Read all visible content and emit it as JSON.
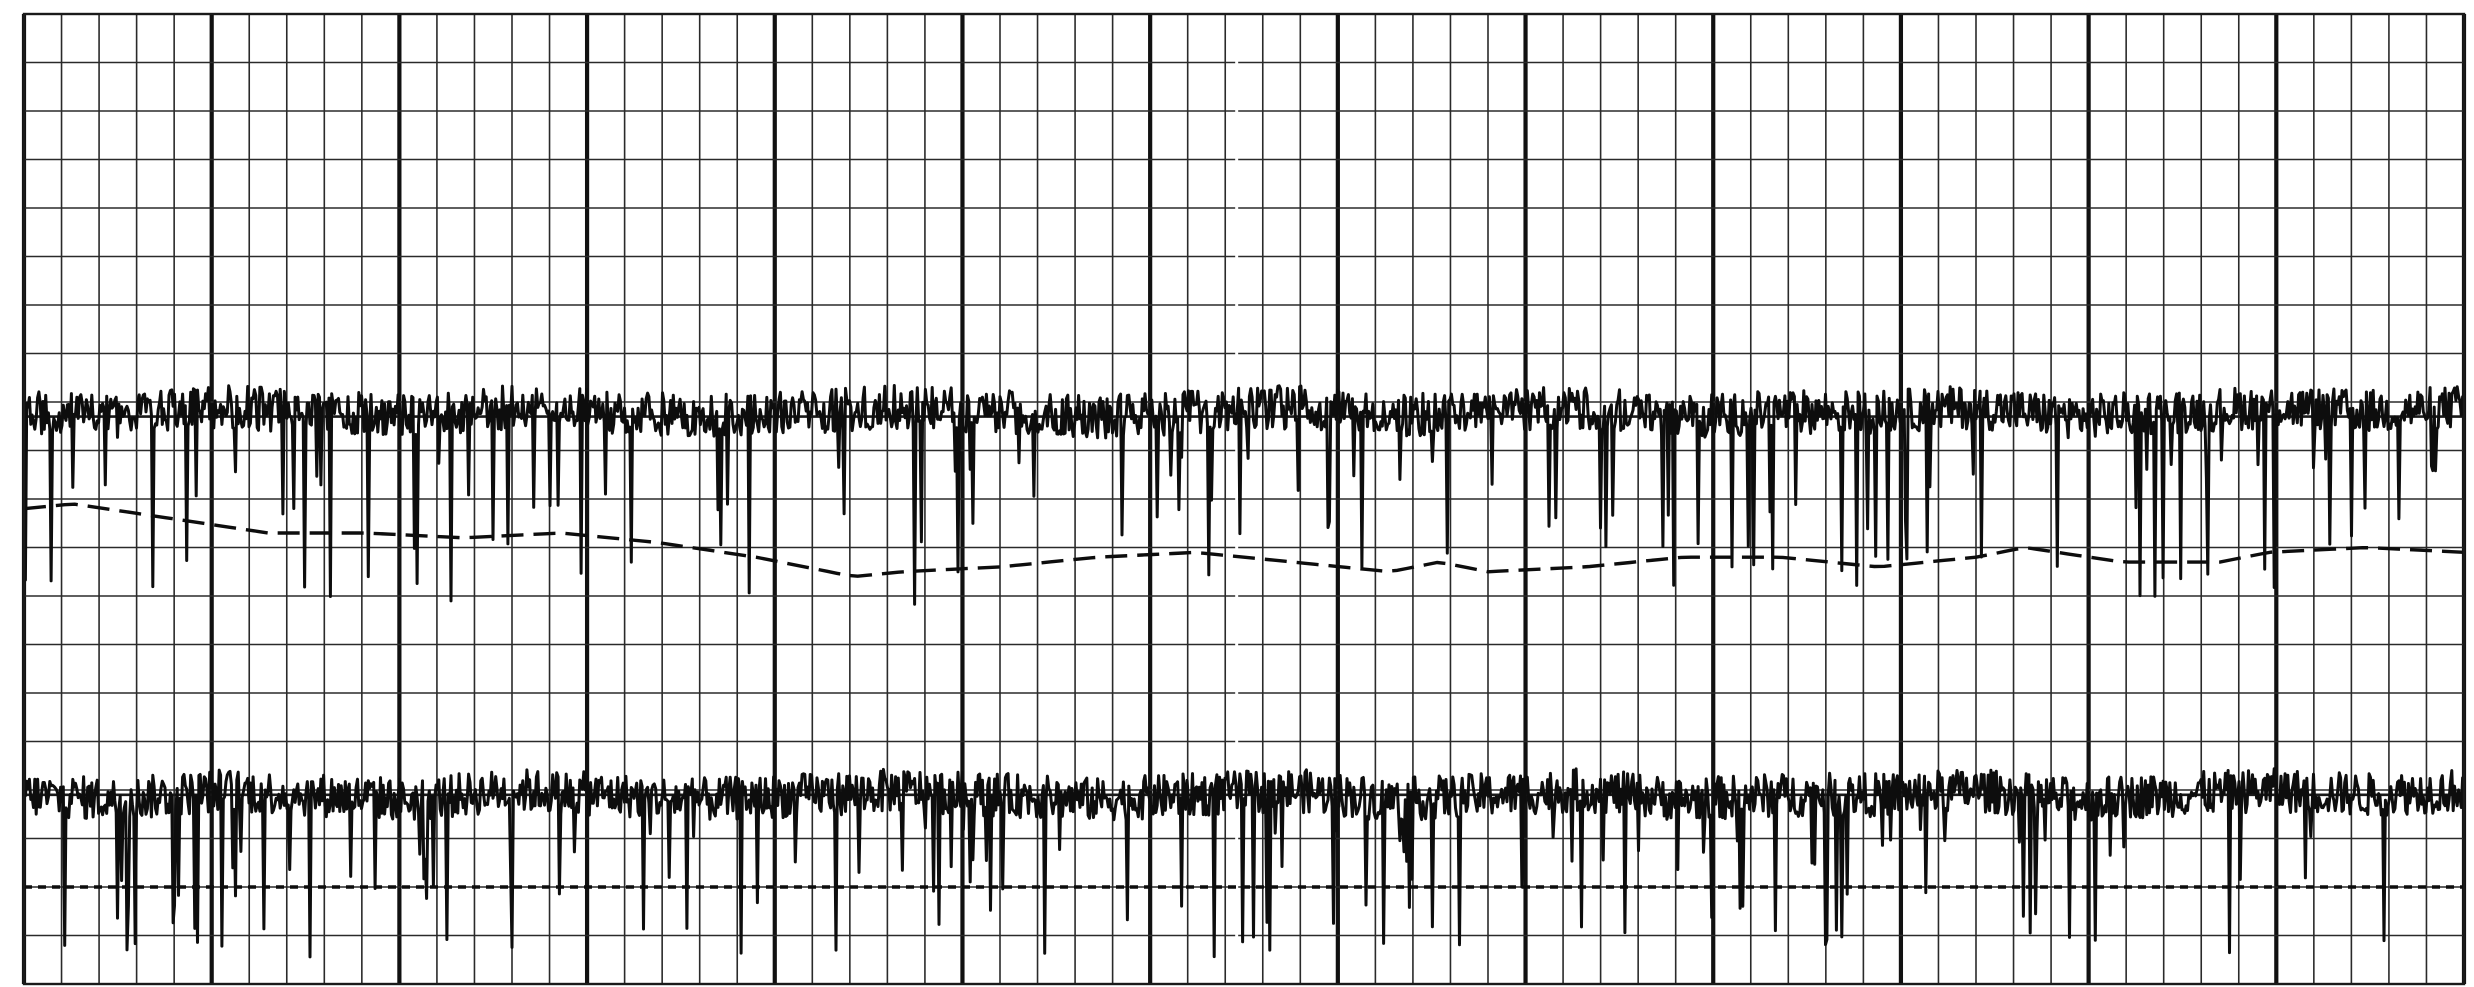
{
  "chart_data": {
    "type": "line",
    "title": "",
    "xlabel": "",
    "ylabel": "",
    "grid": true,
    "legend": "none",
    "tick_labels": [],
    "x_range": [
      0,
      100
    ],
    "y_range": [
      0,
      20
    ],
    "series": [
      {
        "style": "solid",
        "panel": "upper",
        "baseline_level": 11.7,
        "spike_floor": 7.8,
        "x": [
          0,
          4,
          8,
          12,
          16,
          20,
          24,
          28,
          32,
          36,
          40,
          44,
          48,
          52,
          56,
          60,
          64,
          68,
          72,
          76,
          80,
          84,
          88,
          92,
          96,
          100
        ],
        "y": [
          11.8,
          11.7,
          11.9,
          11.8,
          11.7,
          11.9,
          11.8,
          11.7,
          11.8,
          11.9,
          11.8,
          11.7,
          11.8,
          11.9,
          11.7,
          11.8,
          11.9,
          11.7,
          11.8,
          11.8,
          11.9,
          11.7,
          11.8,
          11.9,
          11.8,
          11.9
        ]
      },
      {
        "style": "dashed",
        "panel": "upper",
        "x": [
          0,
          2,
          6,
          10,
          14,
          18,
          22,
          26,
          30,
          34,
          36,
          40,
          44,
          48,
          52,
          56,
          58,
          60,
          64,
          68,
          72,
          76,
          80,
          82,
          86,
          90,
          92,
          96,
          100
        ],
        "y": [
          9.8,
          9.9,
          9.6,
          9.3,
          9.3,
          9.2,
          9.3,
          9.1,
          8.8,
          8.4,
          8.5,
          8.6,
          8.8,
          8.9,
          8.7,
          8.5,
          8.7,
          8.5,
          8.6,
          8.8,
          8.8,
          8.6,
          8.8,
          9.0,
          8.7,
          8.7,
          8.9,
          9.0,
          8.9
        ]
      },
      {
        "style": "solid",
        "panel": "lower",
        "baseline_level": 3.9,
        "spike_floor": 0.5,
        "x": [
          0,
          4,
          8,
          12,
          16,
          20,
          24,
          28,
          32,
          36,
          40,
          44,
          48,
          52,
          56,
          60,
          64,
          68,
          72,
          76,
          80,
          84,
          88,
          92,
          96,
          100
        ],
        "y": [
          3.9,
          3.8,
          4.0,
          3.9,
          3.8,
          4.0,
          3.9,
          3.8,
          3.9,
          4.0,
          3.9,
          3.8,
          3.9,
          4.0,
          3.8,
          3.9,
          4.0,
          3.8,
          3.9,
          3.9,
          4.0,
          3.8,
          3.9,
          4.0,
          3.9,
          4.0
        ]
      },
      {
        "style": "dotted",
        "panel": "lower",
        "x": [
          0,
          100
        ],
        "y": [
          2.0,
          2.0
        ]
      }
    ]
  },
  "colors": {
    "paper": "#ffffff",
    "grid": "#2a2a2a",
    "trace": "#0d0d0d"
  }
}
